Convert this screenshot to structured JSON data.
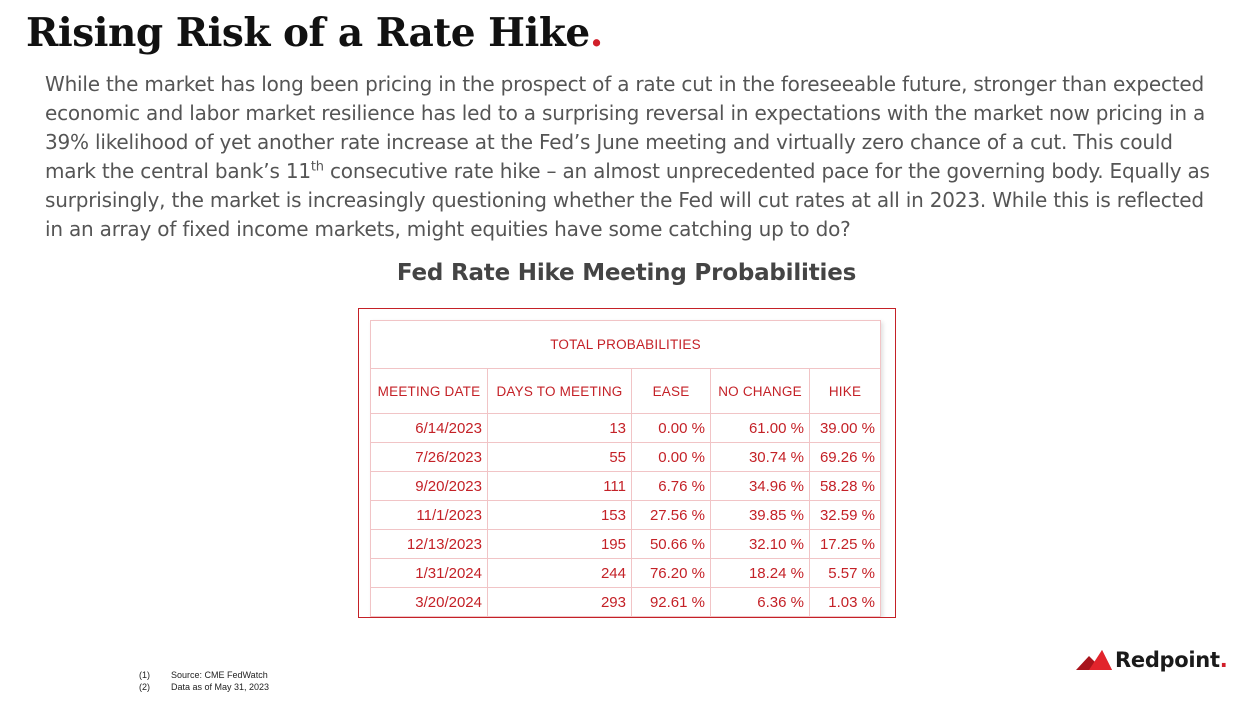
{
  "slide": {
    "title": "Rising Risk of a Rate Hike",
    "title_dot": ".",
    "body_part1": "While the market has long been pricing in the prospect of a rate cut in the foreseeable future, stronger than expected economic and labor market resilience has led to a surprising reversal in expectations with the market now pricing in a 39% likelihood of yet another rate increase at the Fed’s June meeting and virtually zero chance of a cut. This could mark the central bank’s 11",
    "body_sup": "th",
    "body_part2": " consecutive rate hike – an almost unprecedented pace for the governing body. Equally as surprisingly, the market is increasingly questioning whether the Fed will cut rates at all in 2023. While this is reflected in an array of fixed income markets, might equities have some catching up to do?",
    "chart_title": "Fed Rate Hike Meeting Probabilities"
  },
  "chart_data": {
    "type": "table",
    "header": "TOTAL PROBABILITIES",
    "columns": [
      "MEETING DATE",
      "DAYS TO MEETING",
      "EASE",
      "NO CHANGE",
      "HIKE"
    ],
    "rows": [
      [
        "6/14/2023",
        "13",
        "0.00 %",
        "61.00 %",
        "39.00 %"
      ],
      [
        "7/26/2023",
        "55",
        "0.00 %",
        "30.74 %",
        "69.26 %"
      ],
      [
        "9/20/2023",
        "111",
        "6.76 %",
        "34.96 %",
        "58.28 %"
      ],
      [
        "11/1/2023",
        "153",
        "27.56 %",
        "39.85 %",
        "32.59 %"
      ],
      [
        "12/13/2023",
        "195",
        "50.66 %",
        "32.10 %",
        "17.25 %"
      ],
      [
        "1/31/2024",
        "244",
        "76.20 %",
        "18.24 %",
        "5.57 %"
      ],
      [
        "3/20/2024",
        "293",
        "92.61 %",
        "6.36 %",
        "1.03 %"
      ]
    ]
  },
  "footnotes": [
    {
      "num": "(1)",
      "text": "Source: CME FedWatch"
    },
    {
      "num": "(2)",
      "text": "Data as of May 31, 2023"
    }
  ],
  "logo": {
    "text": "Redpoint",
    "dot": ".",
    "icon": "redpoint-mountain-icon",
    "color_dark": "#a8141c",
    "color_light": "#e2242c"
  },
  "colors": {
    "accent": "#d11f2a",
    "table_text": "#c42127",
    "table_grid": "#f1c4c6"
  }
}
